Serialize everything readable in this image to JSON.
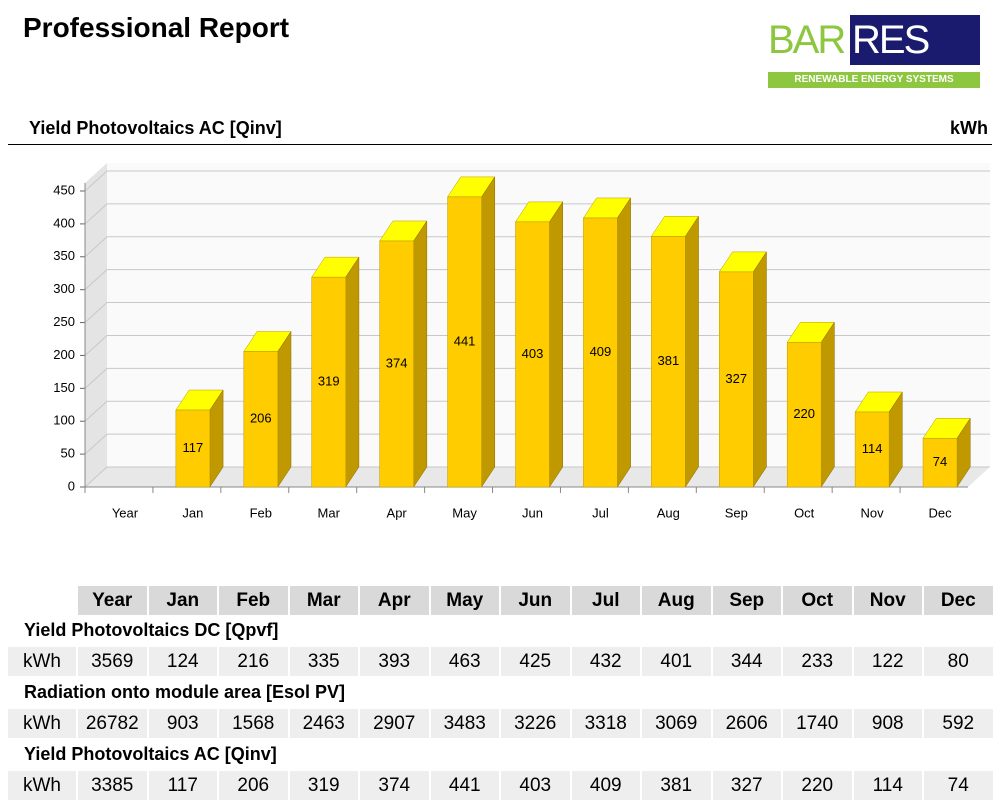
{
  "header": {
    "title": "Professional Report",
    "logo": {
      "name_left": "BAR",
      "name_right": "RES",
      "tagline": "RENEWABLE ENERGY SYSTEMS"
    }
  },
  "chart_data": {
    "type": "bar3d",
    "title": "Yield Photovoltaics AC [Qinv]",
    "unit": "kWh",
    "categories": [
      "Year",
      "Jan",
      "Feb",
      "Mar",
      "Apr",
      "May",
      "Jun",
      "Jul",
      "Aug",
      "Sep",
      "Oct",
      "Nov",
      "Dec"
    ],
    "values": [
      null,
      117,
      206,
      319,
      374,
      441,
      403,
      409,
      381,
      327,
      220,
      114,
      74
    ],
    "color": "#ffcc00",
    "ylim": [
      0,
      450
    ],
    "yticks": [
      0,
      50,
      100,
      150,
      200,
      250,
      300,
      350,
      400,
      450
    ],
    "grid": true
  },
  "table": {
    "columns": [
      "Year",
      "Jan",
      "Feb",
      "Mar",
      "Apr",
      "May",
      "Jun",
      "Jul",
      "Aug",
      "Sep",
      "Oct",
      "Nov",
      "Dec"
    ],
    "sections": [
      {
        "title": "Yield Photovoltaics DC [Qpvf]",
        "unit": "kWh",
        "values": [
          3569,
          124,
          216,
          335,
          393,
          463,
          425,
          432,
          401,
          344,
          233,
          122,
          80
        ]
      },
      {
        "title": "Radiation onto module area  [Esol PV]",
        "unit": "kWh",
        "values": [
          26782,
          903,
          1568,
          2463,
          2907,
          3483,
          3226,
          3318,
          3069,
          2606,
          1740,
          908,
          592
        ]
      },
      {
        "title": "Yield Photovoltaics AC [Qinv]",
        "unit": "kWh",
        "values": [
          3385,
          117,
          206,
          319,
          374,
          441,
          403,
          409,
          381,
          327,
          220,
          114,
          74
        ]
      }
    ]
  }
}
